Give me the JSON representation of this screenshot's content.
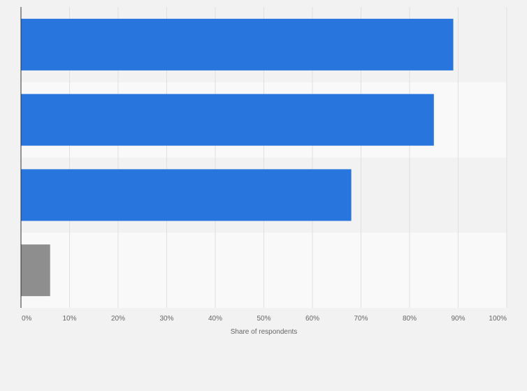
{
  "chart_data": {
    "type": "bar",
    "orientation": "horizontal",
    "categories": [
      "",
      "",
      "",
      ""
    ],
    "values": [
      89,
      85,
      68,
      6
    ],
    "bar_colors": [
      "#2876dd",
      "#2876dd",
      "#2876dd",
      "#8e8e8e"
    ],
    "xlabel": "Share of respondents",
    "xlim": [
      0,
      100
    ],
    "x_ticks": [
      "0%",
      "10%",
      "20%",
      "30%",
      "40%",
      "50%",
      "60%",
      "70%",
      "80%",
      "90%",
      "100%"
    ],
    "grid": true,
    "row_bands": true,
    "colors": {
      "background": "#f2f2f2",
      "band_light": "#f9f9f9",
      "band_dark": "#f2f2f2",
      "gridline": "#e0e0e0",
      "axis": "#333333",
      "tick_text": "#666666"
    }
  }
}
